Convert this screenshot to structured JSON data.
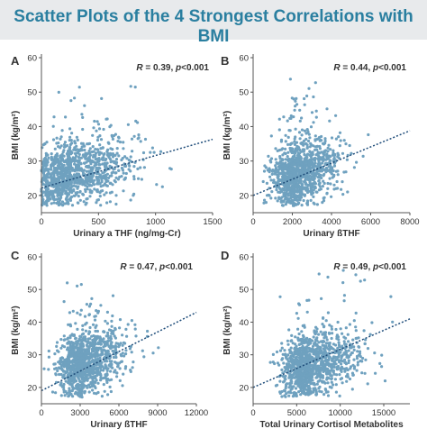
{
  "page": {
    "title": "Scatter Plots of the 4 Strongest Correlations with BMI",
    "dot_color": "#6fa1bf",
    "trend_color": "#1f4d7a",
    "accent_color": "#2a7fa0"
  },
  "chart_data": [
    {
      "panel": "A",
      "type": "scatter",
      "title": "",
      "xlabel": "Urinary a THF (ng/mg-Cr)",
      "ylabel": "BMI (kg/m²)",
      "xlim": [
        0,
        1500
      ],
      "ylim": [
        15,
        60
      ],
      "xticks": [
        0,
        500,
        1000,
        1500
      ],
      "yticks": [
        20,
        30,
        40,
        50,
        60
      ],
      "annotation": {
        "r_label": "R",
        "r_value": "= 0.39, ",
        "p_label": "p",
        "p_value": "<0.001"
      },
      "trend": {
        "x": [
          0,
          1500
        ],
        "y": [
          22.2,
          36.3
        ]
      },
      "cloud": {
        "x_center": 250,
        "x_spread": 250,
        "x_max": 1450,
        "y_center": 26,
        "y_spread": 4.5,
        "y_min": 17,
        "count": 1100
      },
      "grid": false,
      "legend": "none"
    },
    {
      "panel": "B",
      "type": "scatter",
      "title": "",
      "xlabel": "Urinary ßTHF",
      "ylabel": "BMI (kg/m²)",
      "xlim": [
        0,
        8000
      ],
      "ylim": [
        15,
        60
      ],
      "xticks": [
        0,
        2000,
        4000,
        6000,
        8000
      ],
      "yticks": [
        20,
        30,
        40,
        50,
        60
      ],
      "annotation": {
        "r_label": "R",
        "r_value": "= 0.44, ",
        "p_label": "p",
        "p_value": "<0.001"
      },
      "trend": {
        "x": [
          0,
          8000
        ],
        "y": [
          20.0,
          38.8
        ]
      },
      "cloud": {
        "x_center": 2200,
        "x_spread": 1000,
        "x_max": 7400,
        "y_center": 26,
        "y_spread": 4.5,
        "y_min": 17,
        "count": 1100
      },
      "grid": false,
      "legend": "none"
    },
    {
      "panel": "C",
      "type": "scatter",
      "title": "",
      "xlabel": "Urinary ßTHF",
      "ylabel": "BMI (kg/m²)",
      "xlim": [
        0,
        12000
      ],
      "ylim": [
        15,
        60
      ],
      "xticks": [
        0,
        3000,
        6000,
        9000,
        12000
      ],
      "yticks": [
        20,
        30,
        40,
        50,
        60
      ],
      "annotation": {
        "r_label": "R",
        "r_value": "= 0.47, ",
        "p_label": "p",
        "p_value": "<0.001"
      },
      "trend": {
        "x": [
          0,
          12000
        ],
        "y": [
          19.0,
          43.0
        ]
      },
      "cloud": {
        "x_center": 3200,
        "x_spread": 1500,
        "x_max": 11000,
        "y_center": 27,
        "y_spread": 5,
        "y_min": 17,
        "count": 1100
      },
      "grid": false,
      "legend": "none"
    },
    {
      "panel": "D",
      "type": "scatter",
      "title": "",
      "xlabel": "Total Urinary Cortisol Metabolites",
      "ylabel": "BMI (kg/m²)",
      "xlim": [
        0,
        18000
      ],
      "ylim": [
        15,
        60
      ],
      "xticks": [
        0,
        5000,
        10000,
        15000
      ],
      "yticks": [
        20,
        30,
        40,
        50,
        60
      ],
      "annotation": {
        "r_label": "R",
        "r_value": "= 0.49, ",
        "p_label": "p",
        "p_value": "<0.001"
      },
      "trend": {
        "x": [
          0,
          18000
        ],
        "y": [
          20.0,
          41.0
        ]
      },
      "cloud": {
        "x_center": 6500,
        "x_spread": 2600,
        "x_max": 17500,
        "y_center": 27,
        "y_spread": 5,
        "y_min": 17,
        "count": 1100
      },
      "grid": false,
      "legend": "none"
    }
  ]
}
